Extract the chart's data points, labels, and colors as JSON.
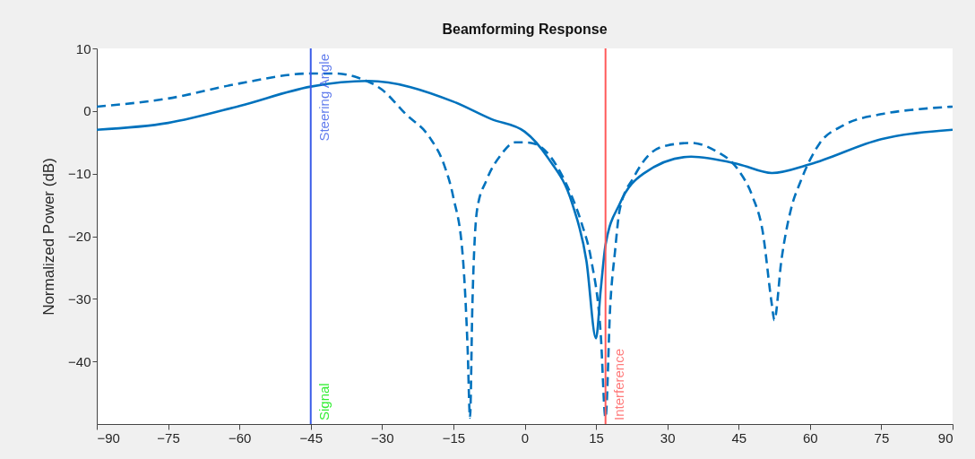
{
  "chart_data": {
    "type": "line",
    "title": "Beamforming Response",
    "ylabel": "Normalized Power (dB)",
    "xlim": [
      -90,
      90
    ],
    "xticks": [
      -90,
      -75,
      -60,
      -45,
      -30,
      -15,
      0,
      15,
      30,
      45,
      60,
      75,
      90
    ],
    "ylim": [
      -50,
      10
    ],
    "yticks": [
      -40,
      -30,
      -20,
      -10,
      0,
      10
    ],
    "grid": false,
    "series": [
      {
        "color": "#0072bd",
        "line_style": "solid",
        "x": [
          -90,
          -75,
          -60,
          -45,
          -33,
          -15,
          -7,
          0,
          5,
          10,
          13,
          15,
          16,
          17,
          20,
          25,
          35,
          45,
          52,
          60,
          75,
          90
        ],
        "values": [
          -3.0,
          -1.9,
          0.8,
          3.9,
          4.8,
          1.5,
          -1.3,
          -3.3,
          -7.6,
          -14.8,
          -24,
          -36.3,
          -28.5,
          -21.4,
          -14.8,
          -10,
          -7.3,
          -8.5,
          -9.9,
          -8.5,
          -4.5,
          -3.0
        ]
      },
      {
        "color": "#0072bd",
        "line_style": "dashed",
        "x": [
          -90,
          -75,
          -60,
          -45,
          -40,
          -35,
          -30,
          -25,
          -20,
          -17,
          -15,
          -13,
          -12,
          -11.5,
          -11,
          -10,
          -8,
          -5,
          -2,
          0,
          2,
          5,
          8,
          10,
          12,
          14,
          16,
          17,
          18,
          19,
          20,
          23,
          26,
          30,
          35,
          40,
          45,
          48,
          50,
          52,
          52.5,
          54,
          56,
          58,
          62,
          67,
          75,
          83,
          90
        ],
        "values": [
          0.7,
          2,
          4.4,
          6,
          6,
          5.3,
          3.4,
          -0.5,
          -4.2,
          -8.5,
          -13.8,
          -23.4,
          -38,
          -49,
          -31,
          -15.7,
          -11,
          -7,
          -5,
          -5,
          -5.2,
          -6.9,
          -10.5,
          -13.8,
          -18,
          -23.8,
          -35.7,
          -49,
          -31,
          -22.4,
          -15.7,
          -10.5,
          -7.1,
          -5.5,
          -5.1,
          -6.3,
          -9.5,
          -13.8,
          -19,
          -31,
          -33.4,
          -23.8,
          -15.7,
          -11.3,
          -5.2,
          -2.3,
          -0.5,
          0.3,
          0.7
        ]
      }
    ],
    "ref_lines": [
      {
        "axis": "x",
        "value": -45,
        "label": "Steering Angle",
        "color": "#3a5ce8"
      },
      {
        "axis": "x",
        "value": 17,
        "label": "Interference",
        "color": "#ff5a5a"
      }
    ],
    "annotations": [
      {
        "text": "Signal",
        "x": -45,
        "y": -50
      }
    ]
  }
}
